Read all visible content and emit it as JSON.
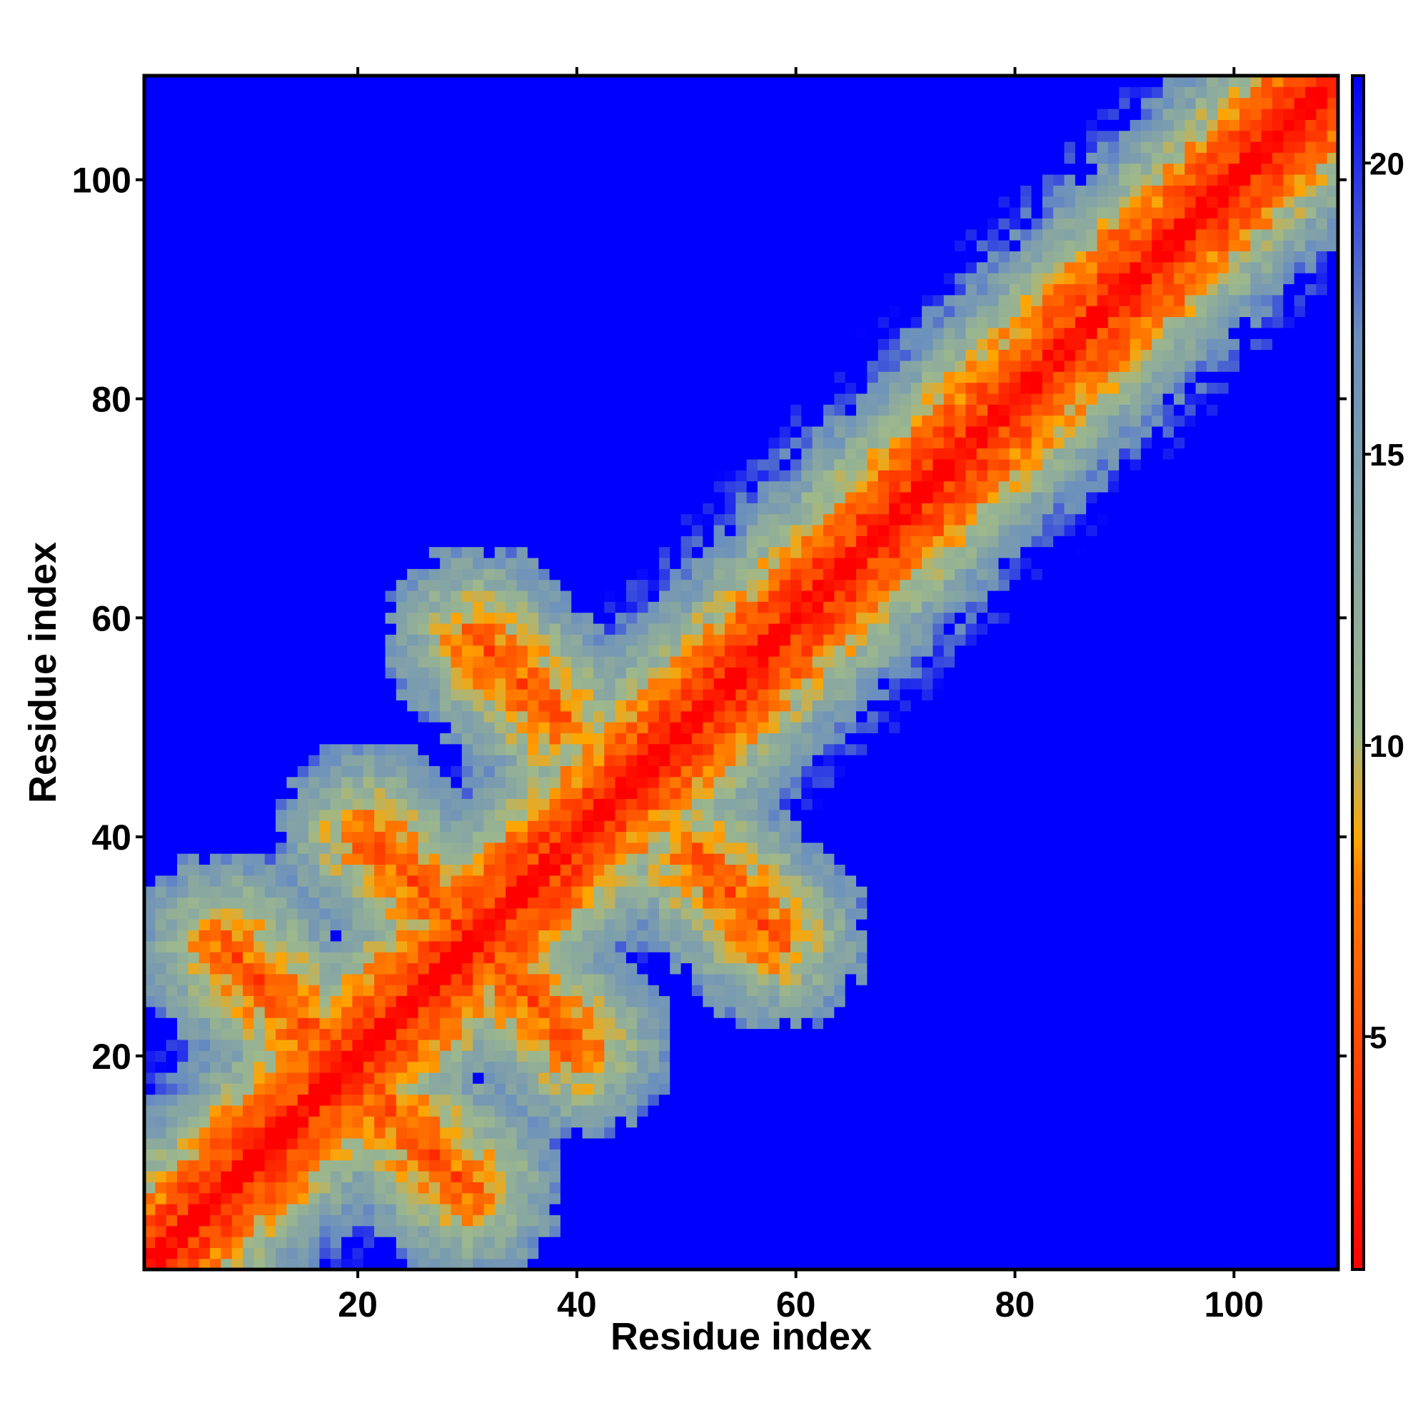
{
  "chart_data": {
    "type": "heatmap",
    "title": "",
    "xlabel": "Residue index",
    "ylabel": "Residue index",
    "n_residues": 109,
    "xlim": [
      1,
      109
    ],
    "ylim": [
      1,
      109
    ],
    "x_ticks": [
      20,
      40,
      60,
      80,
      100
    ],
    "y_ticks": [
      20,
      40,
      60,
      80,
      100
    ],
    "colorbar": {
      "ticks": [
        5,
        10,
        15,
        20
      ],
      "range": [
        1,
        21.5
      ],
      "colors": [
        "#ff0000",
        "#ff8000",
        "#ffa500",
        "#9db88c",
        "#6b8fbf",
        "#0000ff"
      ],
      "stops": [
        0,
        0.33,
        0.36,
        0.45,
        0.78,
        1
      ]
    },
    "structure": {
      "diagonal": {
        "band_width_close": 1.5,
        "band_width_orange": 3
      },
      "helices": [
        {
          "start": 64,
          "end": 80,
          "value": 5
        },
        {
          "start": 84,
          "end": 109,
          "value": 5
        }
      ],
      "antiparallel_contacts": [
        {
          "i": [
            8,
            18
          ],
          "j": [
            30,
            20
          ],
          "value": 5
        },
        {
          "i": [
            20,
            28
          ],
          "j": [
            17,
            7
          ],
          "value": 5
        },
        {
          "i": [
            21,
            28
          ],
          "j": [
            40,
            33
          ],
          "value": 5
        },
        {
          "i": [
            31,
            40
          ],
          "j": [
            29,
            20
          ],
          "value": 5
        },
        {
          "i": [
            31,
            38
          ],
          "j": [
            58,
            51
          ],
          "value": 5
        },
        {
          "i": [
            50,
            58
          ],
          "j": [
            38,
            31
          ],
          "value": 5
        }
      ],
      "far_value": 21.5
    }
  }
}
